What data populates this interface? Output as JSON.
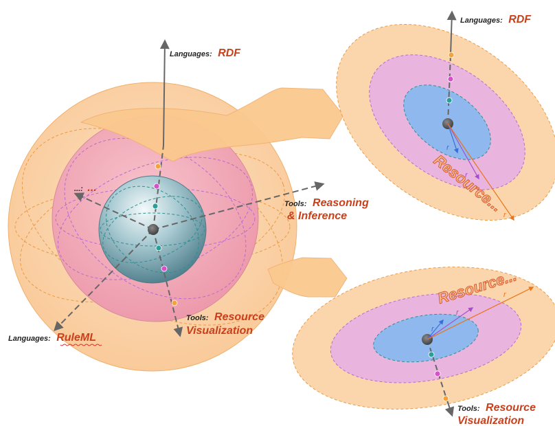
{
  "colors": {
    "outer": "#fbd6ad",
    "middle": "#f1a9b8",
    "inner_light": "#e9f3f5",
    "inner_dark": "#5d8c98",
    "ellipse_middle": "#e9b4dd",
    "ellipse_inner": "#8fb8ee",
    "label_accent": "#c8401c",
    "arrow_fill": "#fbc98f"
  },
  "sphere": {
    "axis_top": {
      "key": "Languages:",
      "value": "RDF"
    },
    "axis_left": {
      "key": "...:",
      "value": "..."
    },
    "axis_right": {
      "key": "Tools:",
      "value_line1": "Reasoning",
      "value_line2": "& Inference"
    },
    "axis_bottom": {
      "key": "Tools:",
      "value_line1": "Resource",
      "value_line2": "Visualization"
    },
    "axis_lower_left": {
      "key": "Languages:",
      "value": "RuleML"
    }
  },
  "slice_top": {
    "axis_label": {
      "key": "Languages:",
      "value": "RDF"
    },
    "resource_text": "Resource...",
    "radius_label": "r"
  },
  "slice_bottom": {
    "axis_label": {
      "key": "Tools:",
      "value_line1": "Resource",
      "value_line2": "Visualization"
    },
    "resource_text": "Resource...",
    "radius_label": "r"
  }
}
